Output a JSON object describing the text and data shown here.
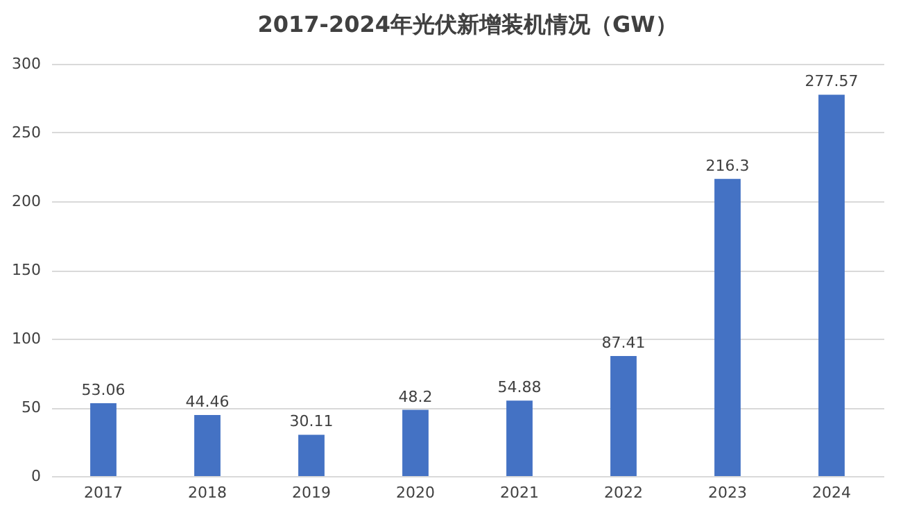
{
  "chart_data": {
    "type": "bar",
    "title": "2017-2024年光伏新增装机情况（GW）",
    "categories": [
      "2017",
      "2018",
      "2019",
      "2020",
      "2021",
      "2022",
      "2023",
      "2024"
    ],
    "values": [
      53.06,
      44.46,
      30.11,
      48.2,
      54.88,
      87.41,
      216.3,
      277.57
    ],
    "color": "#4472c4",
    "ylim": [
      0,
      300
    ],
    "yticks": [
      0,
      50,
      100,
      150,
      200,
      250,
      300
    ],
    "grid": "y",
    "data_labels": true
  }
}
